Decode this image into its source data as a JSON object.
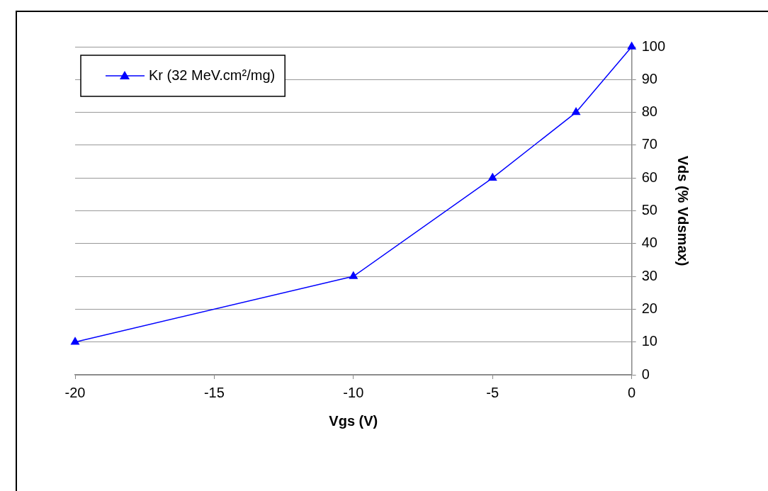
{
  "chart_data": {
    "type": "line",
    "xlabel": "Vgs (V)",
    "ylabel": "Vds (% Vdsmax)",
    "x": [
      -20,
      -10,
      -5,
      -2,
      0
    ],
    "series": [
      {
        "name": "Kr (32 MeV.cm²/mg)",
        "color": "#0000ff",
        "values": [
          10,
          30,
          60,
          80,
          100
        ]
      }
    ],
    "xlim": [
      -20,
      0
    ],
    "xticks": [
      -20,
      -15,
      -10,
      -5,
      0
    ],
    "ylim": [
      0,
      100
    ],
    "yticks": [
      0,
      10,
      20,
      30,
      40,
      50,
      60,
      70,
      80,
      90,
      100
    ],
    "grid": "y",
    "legend": "top left",
    "marker": "triangle",
    "line_style": "solid"
  }
}
